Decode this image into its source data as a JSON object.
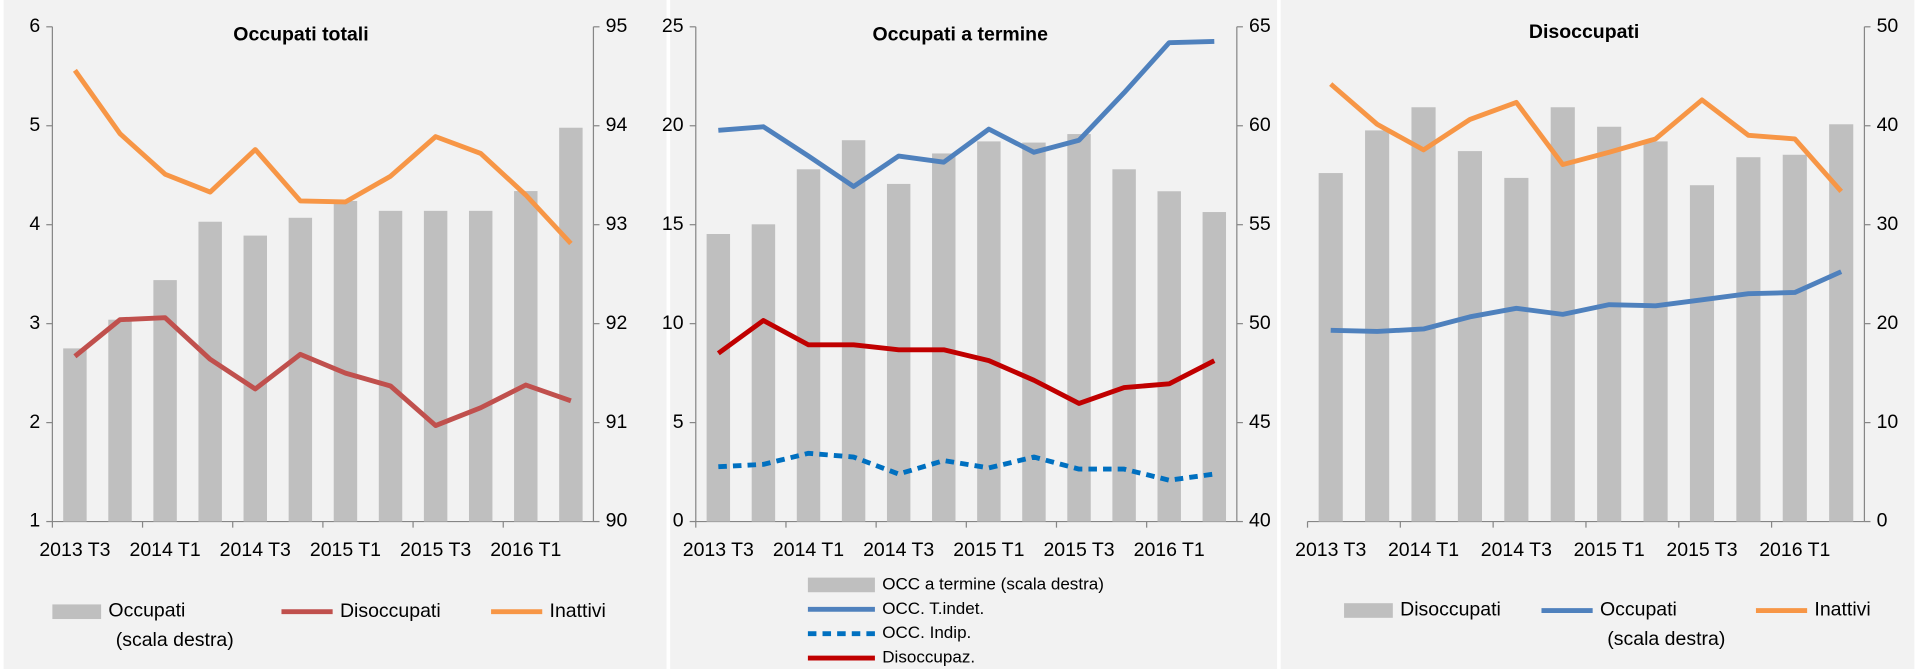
{
  "chart_data": [
    {
      "type": "bar_line",
      "title": "Occupati totali",
      "categories": [
        "2013 T3",
        null,
        "2014 T1",
        null,
        "2014 T3",
        null,
        "2015 T1",
        null,
        "2015 T3",
        null,
        "2016 T1",
        null
      ],
      "ylim": [
        1,
        6
      ],
      "yticks": [
        1,
        2,
        3,
        4,
        5,
        6
      ],
      "y2lim": [
        90,
        95
      ],
      "y2ticks": [
        90,
        91,
        92,
        93,
        94,
        95
      ],
      "series": [
        {
          "name": "Occupati (scala destra)",
          "type": "bar",
          "axis": "y2",
          "color": "#bfbfbf",
          "values": [
            91.75,
            92.04,
            92.44,
            93.03,
            92.89,
            93.07,
            93.24,
            93.14,
            93.14,
            93.14,
            93.34,
            93.98
          ]
        },
        {
          "name": "Disoccupati",
          "type": "line",
          "axis": "y",
          "color": "#c0504d",
          "values": [
            2.67,
            3.04,
            3.06,
            2.64,
            2.34,
            2.69,
            2.5,
            2.37,
            1.97,
            2.15,
            2.38,
            2.22
          ]
        },
        {
          "name": "Inattivi",
          "type": "line",
          "axis": "y",
          "color": "#f79646",
          "values": [
            5.56,
            4.92,
            4.51,
            4.33,
            4.76,
            4.24,
            4.23,
            4.49,
            4.89,
            4.72,
            4.3,
            3.81
          ]
        }
      ]
    },
    {
      "type": "bar_line",
      "title": "Occupati a termine",
      "categories": [
        "2013 T3",
        null,
        "2014 T1",
        null,
        "2014 T3",
        null,
        "2015 T1",
        null,
        "2015 T3",
        null,
        "2016 T1",
        null
      ],
      "ylim": [
        0,
        25
      ],
      "yticks": [
        0,
        5,
        10,
        15,
        20,
        25
      ],
      "y2lim": [
        40,
        65
      ],
      "y2ticks": [
        40,
        45,
        50,
        55,
        60,
        65
      ],
      "series": [
        {
          "name": "OCC a termine (scala destra)",
          "type": "bar",
          "axis": "y2",
          "color": "#bfbfbf",
          "values": [
            54.53,
            55.02,
            57.8,
            59.27,
            57.06,
            58.6,
            59.21,
            59.15,
            59.58,
            57.8,
            56.69,
            55.64
          ]
        },
        {
          "name": "OCC. T.indet.",
          "type": "line",
          "axis": "y",
          "color": "#4f81bd",
          "values": [
            19.77,
            19.95,
            18.47,
            16.93,
            18.47,
            18.16,
            19.83,
            18.66,
            19.27,
            21.67,
            24.2,
            24.26
          ]
        },
        {
          "name": "OCC. Indip.",
          "type": "line",
          "axis": "y",
          "color": "#0070c0",
          "dashed": true,
          "values": [
            2.77,
            2.89,
            3.45,
            3.26,
            2.4,
            3.08,
            2.71,
            3.26,
            2.65,
            2.65,
            2.09,
            2.4
          ]
        },
        {
          "name": "Disoccupaz.",
          "type": "line",
          "axis": "y",
          "color": "#c00000",
          "values": [
            8.5,
            10.16,
            8.93,
            8.93,
            8.68,
            8.68,
            8.13,
            7.14,
            5.97,
            6.77,
            6.96,
            8.13
          ]
        }
      ]
    },
    {
      "type": "bar_line",
      "title": "Disoccupati",
      "categories": [
        "2013 T3",
        null,
        "2014 T1",
        null,
        "2014 T3",
        null,
        "2015 T1",
        null,
        "2015 T3",
        null,
        "2016 T1",
        null
      ],
      "y2lim": [
        0,
        50
      ],
      "y2ticks": [
        0,
        10,
        20,
        30,
        40,
        50
      ],
      "series": [
        {
          "name": "Disoccupati",
          "type": "bar",
          "axis": "y2",
          "color": "#bfbfbf",
          "values": [
            35.22,
            39.53,
            41.87,
            37.44,
            34.73,
            41.87,
            39.9,
            38.42,
            33.99,
            36.82,
            37.07,
            40.15
          ]
        },
        {
          "name": "Occupati (scala destra)",
          "type": "line",
          "axis": "y2",
          "color": "#4f81bd",
          "values": [
            19.33,
            19.21,
            19.46,
            20.69,
            21.55,
            20.94,
            21.92,
            21.8,
            22.41,
            23.03,
            23.15,
            25.25
          ]
        },
        {
          "name": "Inattivi",
          "type": "line",
          "axis": "y2",
          "color": "#f79646",
          "values": [
            44.21,
            40.15,
            37.56,
            40.64,
            42.36,
            36.08,
            37.32,
            38.67,
            42.61,
            39.04,
            38.67,
            33.37
          ]
        }
      ]
    }
  ]
}
